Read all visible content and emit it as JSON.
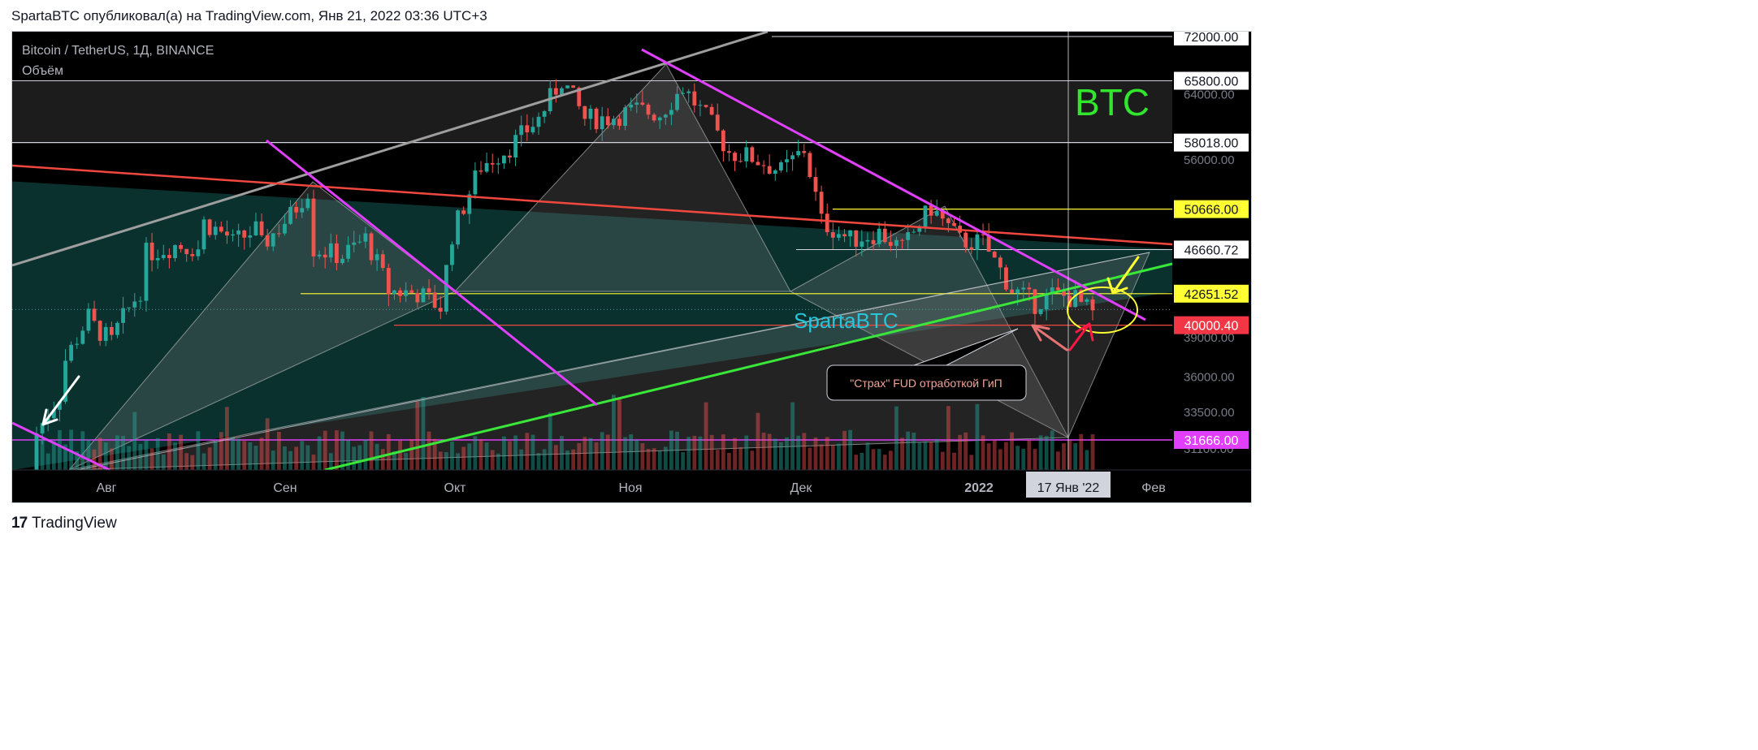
{
  "header": "SpartaBTC опубликовал(а) на TradingView.com, Янв 21, 2022 03:36 UTC+3",
  "footer": {
    "brand": "TradingView",
    "mark": "17"
  },
  "colors": {
    "up": "#26a69a",
    "down": "#ef5350",
    "magenta": "#e040fb",
    "green": "#39e639",
    "red_line": "#f0473e",
    "yellow": "#ffff33",
    "white_line": "#d1d4dc",
    "teal_label": "#26c6da",
    "btc_label": "#32e62e"
  },
  "chart_data": {
    "type": "candlestick",
    "title": "Bitcoin / TetherUS, 1Д, BINANCE",
    "subtitle": "Объём",
    "watermark": "BTC",
    "author_label": "SpartaBTC",
    "annotation": "\"Страх\" FUD отработкой ГиП",
    "x_ticks": [
      "Авг",
      "Сен",
      "Окт",
      "Ноя",
      "Дек",
      "2022",
      "Фев"
    ],
    "crosshair_date": "17 Янв '22",
    "y_scale": "log",
    "ylim": [
      31100,
      72000
    ],
    "y_ticks": [
      31100,
      33500,
      36000,
      39000,
      56000,
      64000
    ],
    "price_labels": [
      {
        "value": "72000.00",
        "style": "white"
      },
      {
        "value": "65800.00",
        "style": "white"
      },
      {
        "value": "58018.00",
        "style": "white"
      },
      {
        "value": "50666.00",
        "style": "yellow"
      },
      {
        "value": "46660.72",
        "style": "white"
      },
      {
        "value": "42651.52",
        "style": "yellow"
      },
      {
        "value": "40000.40",
        "style": "red"
      },
      {
        "value": "31666.00",
        "style": "magenta"
      }
    ],
    "levels": [
      72000,
      65800,
      58018,
      50666,
      46660.72,
      42651.52,
      40000.4,
      31666
    ],
    "date_range": [
      "2021-07-21",
      "2022-01-20"
    ],
    "ohlc_nodes": [
      [
        "2021-07-21",
        29800,
        32100
      ],
      [
        "2021-07-26",
        35400,
        37300
      ],
      [
        "2021-07-31",
        41500,
        39900
      ],
      [
        "2021-08-04",
        38200,
        39750
      ],
      [
        "2021-08-09",
        43800,
        46300
      ],
      [
        "2021-08-14",
        47000,
        47100
      ],
      [
        "2021-08-19",
        46700,
        49300
      ],
      [
        "2021-08-24",
        47700,
        47300
      ],
      [
        "2021-08-29",
        48900,
        47000
      ],
      [
        "2021-09-03",
        50000,
        50000
      ],
      [
        "2021-09-06",
        52700,
        52700
      ],
      [
        "2021-09-07",
        46800,
        46800
      ],
      [
        "2021-09-12",
        46000,
        46100
      ],
      [
        "2021-09-16",
        47700,
        47700
      ],
      [
        "2021-09-20",
        43000,
        42900
      ],
      [
        "2021-09-25",
        42700,
        42700
      ],
      [
        "2021-09-29",
        41500,
        41500
      ],
      [
        "2021-10-01",
        48100,
        48100
      ],
      [
        "2021-10-06",
        55300,
        55300
      ],
      [
        "2021-10-11",
        57500,
        57500
      ],
      [
        "2021-10-16",
        60900,
        60900
      ],
      [
        "2021-10-20",
        66000,
        66000
      ],
      [
        "2021-10-24",
        60900,
        60900
      ],
      [
        "2021-10-28",
        61000,
        61000
      ],
      [
        "2021-11-02",
        62000,
        62000
      ],
      [
        "2021-11-06",
        61500,
        61500
      ],
      [
        "2021-11-10",
        64900,
        64900
      ],
      [
        "2021-11-15",
        60100,
        60100
      ],
      [
        "2021-11-18",
        56900,
        56900
      ],
      [
        "2021-11-22",
        56300,
        56300
      ],
      [
        "2021-11-27",
        54700,
        54700
      ],
      [
        "2021-12-01",
        57200,
        57200
      ],
      [
        "2021-12-04",
        49400,
        49400
      ],
      [
        "2021-12-09",
        47600,
        47600
      ],
      [
        "2021-12-14",
        48300,
        48300
      ],
      [
        "2021-12-18",
        46700,
        46700
      ],
      [
        "2021-12-23",
        50800,
        50800
      ],
      [
        "2021-12-28",
        47500,
        47500
      ],
      [
        "2022-01-01",
        47300,
        47300
      ],
      [
        "2022-01-06",
        43000,
        43000
      ],
      [
        "2022-01-10",
        41800,
        41800
      ],
      [
        "2022-01-13",
        42600,
        42600
      ],
      [
        "2022-01-17",
        42200,
        42200
      ],
      [
        "2022-01-20",
        40900,
        40900
      ]
    ]
  }
}
